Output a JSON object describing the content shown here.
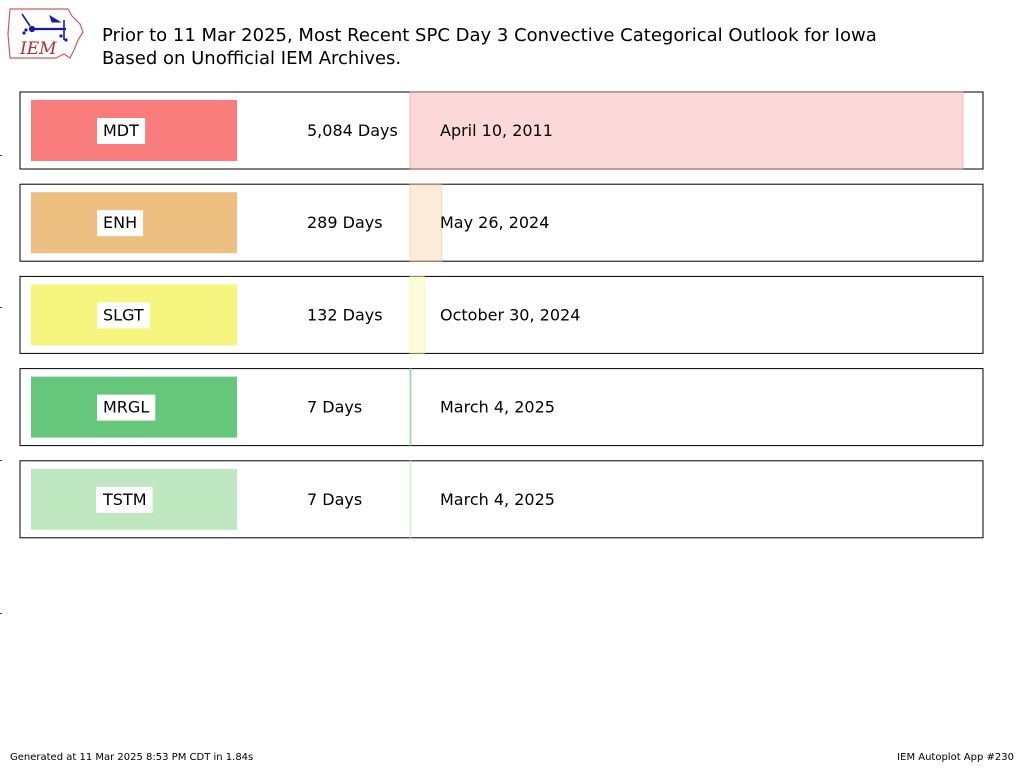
{
  "header": {
    "title": "Prior to 11 Mar 2025, Most Recent SPC Day 3 Convective Categorical Outlook for Iowa\nBased on Unofficial IEM Archives.",
    "logo_text": "IEM"
  },
  "footer": {
    "generated": "Generated at 11 Mar 2025 8:53 PM CDT in 1.84s",
    "app": "IEM Autoplot App #230"
  },
  "chart_data": {
    "type": "bar",
    "orientation": "horizontal",
    "title": "Prior to 11 Mar 2025, Most Recent SPC Day 3 Convective Categorical Outlook for Iowa Based on Unofficial IEM Archives.",
    "categories": [
      "MDT",
      "ENH",
      "SLGT",
      "MRGL",
      "TSTM"
    ],
    "values": [
      5084,
      289,
      132,
      7,
      7
    ],
    "value_labels": [
      "5,084 Days",
      "289 Days",
      "132 Days",
      "7 Days",
      "7 Days"
    ],
    "dates": [
      "April 10, 2011",
      "May 26, 2024",
      "October 30, 2024",
      "March 4, 2025",
      "March 4, 2025"
    ],
    "colors": [
      "#f97d7d",
      "#edbf80",
      "#f6f67e",
      "#66c67b",
      "#c0e8c0"
    ],
    "xlim": [
      0,
      5084
    ],
    "grid": false
  }
}
